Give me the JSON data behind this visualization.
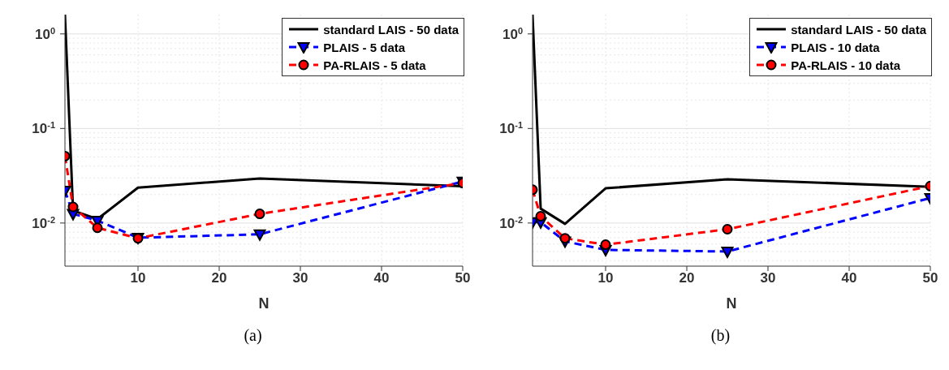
{
  "chart_data": [
    {
      "type": "line",
      "xlabel": "N",
      "annotations": [
        "(a)"
      ],
      "x": [
        1,
        2,
        5,
        10,
        25,
        50
      ],
      "xlim": [
        1,
        50
      ],
      "xticks": [
        10,
        20,
        30,
        40,
        50
      ],
      "log": "y",
      "ylim": [
        0.0035,
        1.6
      ],
      "yticks": [
        {
          "value": 0.01,
          "label": "10$^{-2}$"
        },
        {
          "value": 0.1,
          "label": "10$^{-1}$"
        },
        {
          "value": 1,
          "label": "10$^{0}$"
        }
      ],
      "grid": true,
      "legend": "top right",
      "series": [
        {
          "name": "standard LAIS - 50 data",
          "color": "#000000",
          "line_style": "solid",
          "marker": "none",
          "values": [
            1.6,
            0.0135,
            0.011,
            0.0237,
            0.0296,
            0.0245
          ]
        },
        {
          "name": "PLAIS - 5 data",
          "color": "#0000ff",
          "line_style": "dashed",
          "marker": "triangle",
          "values": [
            0.022,
            0.0125,
            0.0106,
            0.007,
            0.0076,
            0.0275
          ]
        },
        {
          "name": "PA-RLAIS - 5 data",
          "color": "#ff0000",
          "line_style": "dashed",
          "marker": "circle",
          "values": [
            0.051,
            0.0148,
            0.0089,
            0.0069,
            0.0125,
            0.0265
          ]
        }
      ]
    },
    {
      "type": "line",
      "xlabel": "N",
      "annotations": [
        "(b)"
      ],
      "x": [
        1,
        2,
        5,
        10,
        25,
        50
      ],
      "xlim": [
        1,
        50
      ],
      "xticks": [
        10,
        20,
        30,
        40,
        50
      ],
      "log": "y",
      "ylim": [
        0.0035,
        1.6
      ],
      "yticks": [
        {
          "value": 0.01,
          "label": "10$^{-2}$"
        },
        {
          "value": 0.1,
          "label": "10$^{-1}$"
        },
        {
          "value": 1,
          "label": "10$^{0}$"
        }
      ],
      "grid": true,
      "legend": "top right",
      "series": [
        {
          "name": "standard LAIS - 50 data",
          "color": "#000000",
          "line_style": "solid",
          "marker": "none",
          "values": [
            1.6,
            0.0142,
            0.0098,
            0.0233,
            0.029,
            0.0242
          ]
        },
        {
          "name": "PLAIS - 10 data",
          "color": "#0000ff",
          "line_style": "dashed",
          "marker": "triangle",
          "values": [
            0.0102,
            0.0102,
            0.0064,
            0.0052,
            0.005,
            0.0184
          ]
        },
        {
          "name": "PA-RLAIS - 10 data",
          "color": "#ff0000",
          "line_style": "dashed",
          "marker": "circle",
          "values": [
            0.0225,
            0.0118,
            0.0069,
            0.0059,
            0.0086,
            0.0246
          ]
        }
      ]
    }
  ]
}
